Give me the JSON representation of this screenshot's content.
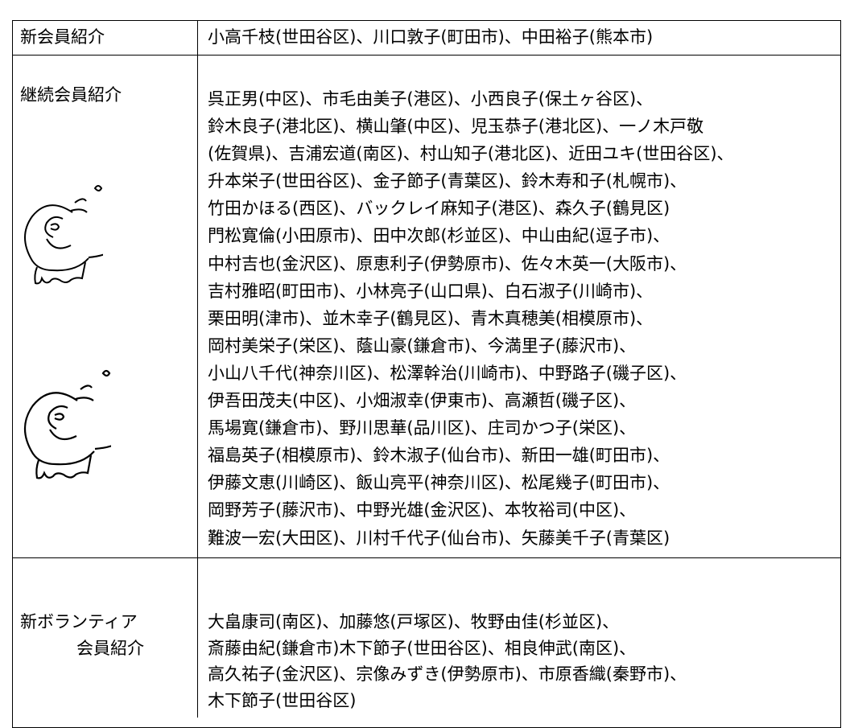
{
  "table": {
    "rows": [
      {
        "label": [
          "新会員紹介"
        ],
        "lines": [
          "小高千枝(世田谷区)、川口敦子(町田市)、中田裕子(熊本市)"
        ]
      },
      {
        "label": [
          "継続会員紹介"
        ],
        "lines": [
          "呉正男(中区)、市毛由美子(港区)、小西良子(保土ヶ谷区)、",
          "鈴木良子(港北区)、横山肇(中区)、児玉恭子(港北区)、一ノ木戸敬",
          "(佐賀県)、吉浦宏道(南区)、村山知子(港北区)、近田ユキ(世田谷区)、",
          "升本栄子(世田谷区)、金子節子(青葉区)、鈴木寿和子(札幌市)、",
          "竹田かほる(西区)、バックレイ麻知子(港区)、森久子(鶴見区)",
          "門松寛倫(小田原市)、田中次郎(杉並区)、中山由紀(逗子市)、",
          "中村吉也(金沢区)、原恵利子(伊勢原市)、佐々木英一(大阪市)、",
          "吉村雅昭(町田市)、小林亮子(山口県)、白石淑子(川崎市)、",
          "栗田明(津市)、並木幸子(鶴見区)、青木真穂美(相模原市)、",
          "岡村美栄子(栄区)、蔭山豪(鎌倉市)、今満里子(藤沢市)、",
          "小山八千代(神奈川区)、松澤幹治(川崎市)、中野路子(磯子区)、",
          "伊吾田茂夫(中区)、小畑淑幸(伊東市)、高瀬哲(磯子区)、",
          "馬場寛(鎌倉市)、野川思華(品川区)、庄司かつ子(栄区)、",
          "福島英子(相模原市)、鈴木淑子(仙台市)、新田一雄(町田市)、",
          "伊藤文恵(川崎区)、飯山亮平(神奈川区)、松尾幾子(町田市)、",
          "岡野芳子(藤沢市)、中野光雄(金沢区)、本牧裕司(中区)、",
          "難波一宏(大田区)、川村千代子(仙台市)、矢藤美千子(青葉区)"
        ]
      },
      {
        "label": [
          "新ボランティア",
          "会員紹介"
        ],
        "lines": [
          "大畠康司(南区)、加藤悠(戸塚区)、牧野由佳(杉並区)、",
          "斎藤由紀(鎌倉市)木下節子(世田谷区)、相良伸武(南区)、",
          "高久祐子(金沢区)、宗像みずき(伊勢原市)、市原香織(秦野市)、",
          "木下節子(世田谷区)"
        ]
      }
    ]
  }
}
